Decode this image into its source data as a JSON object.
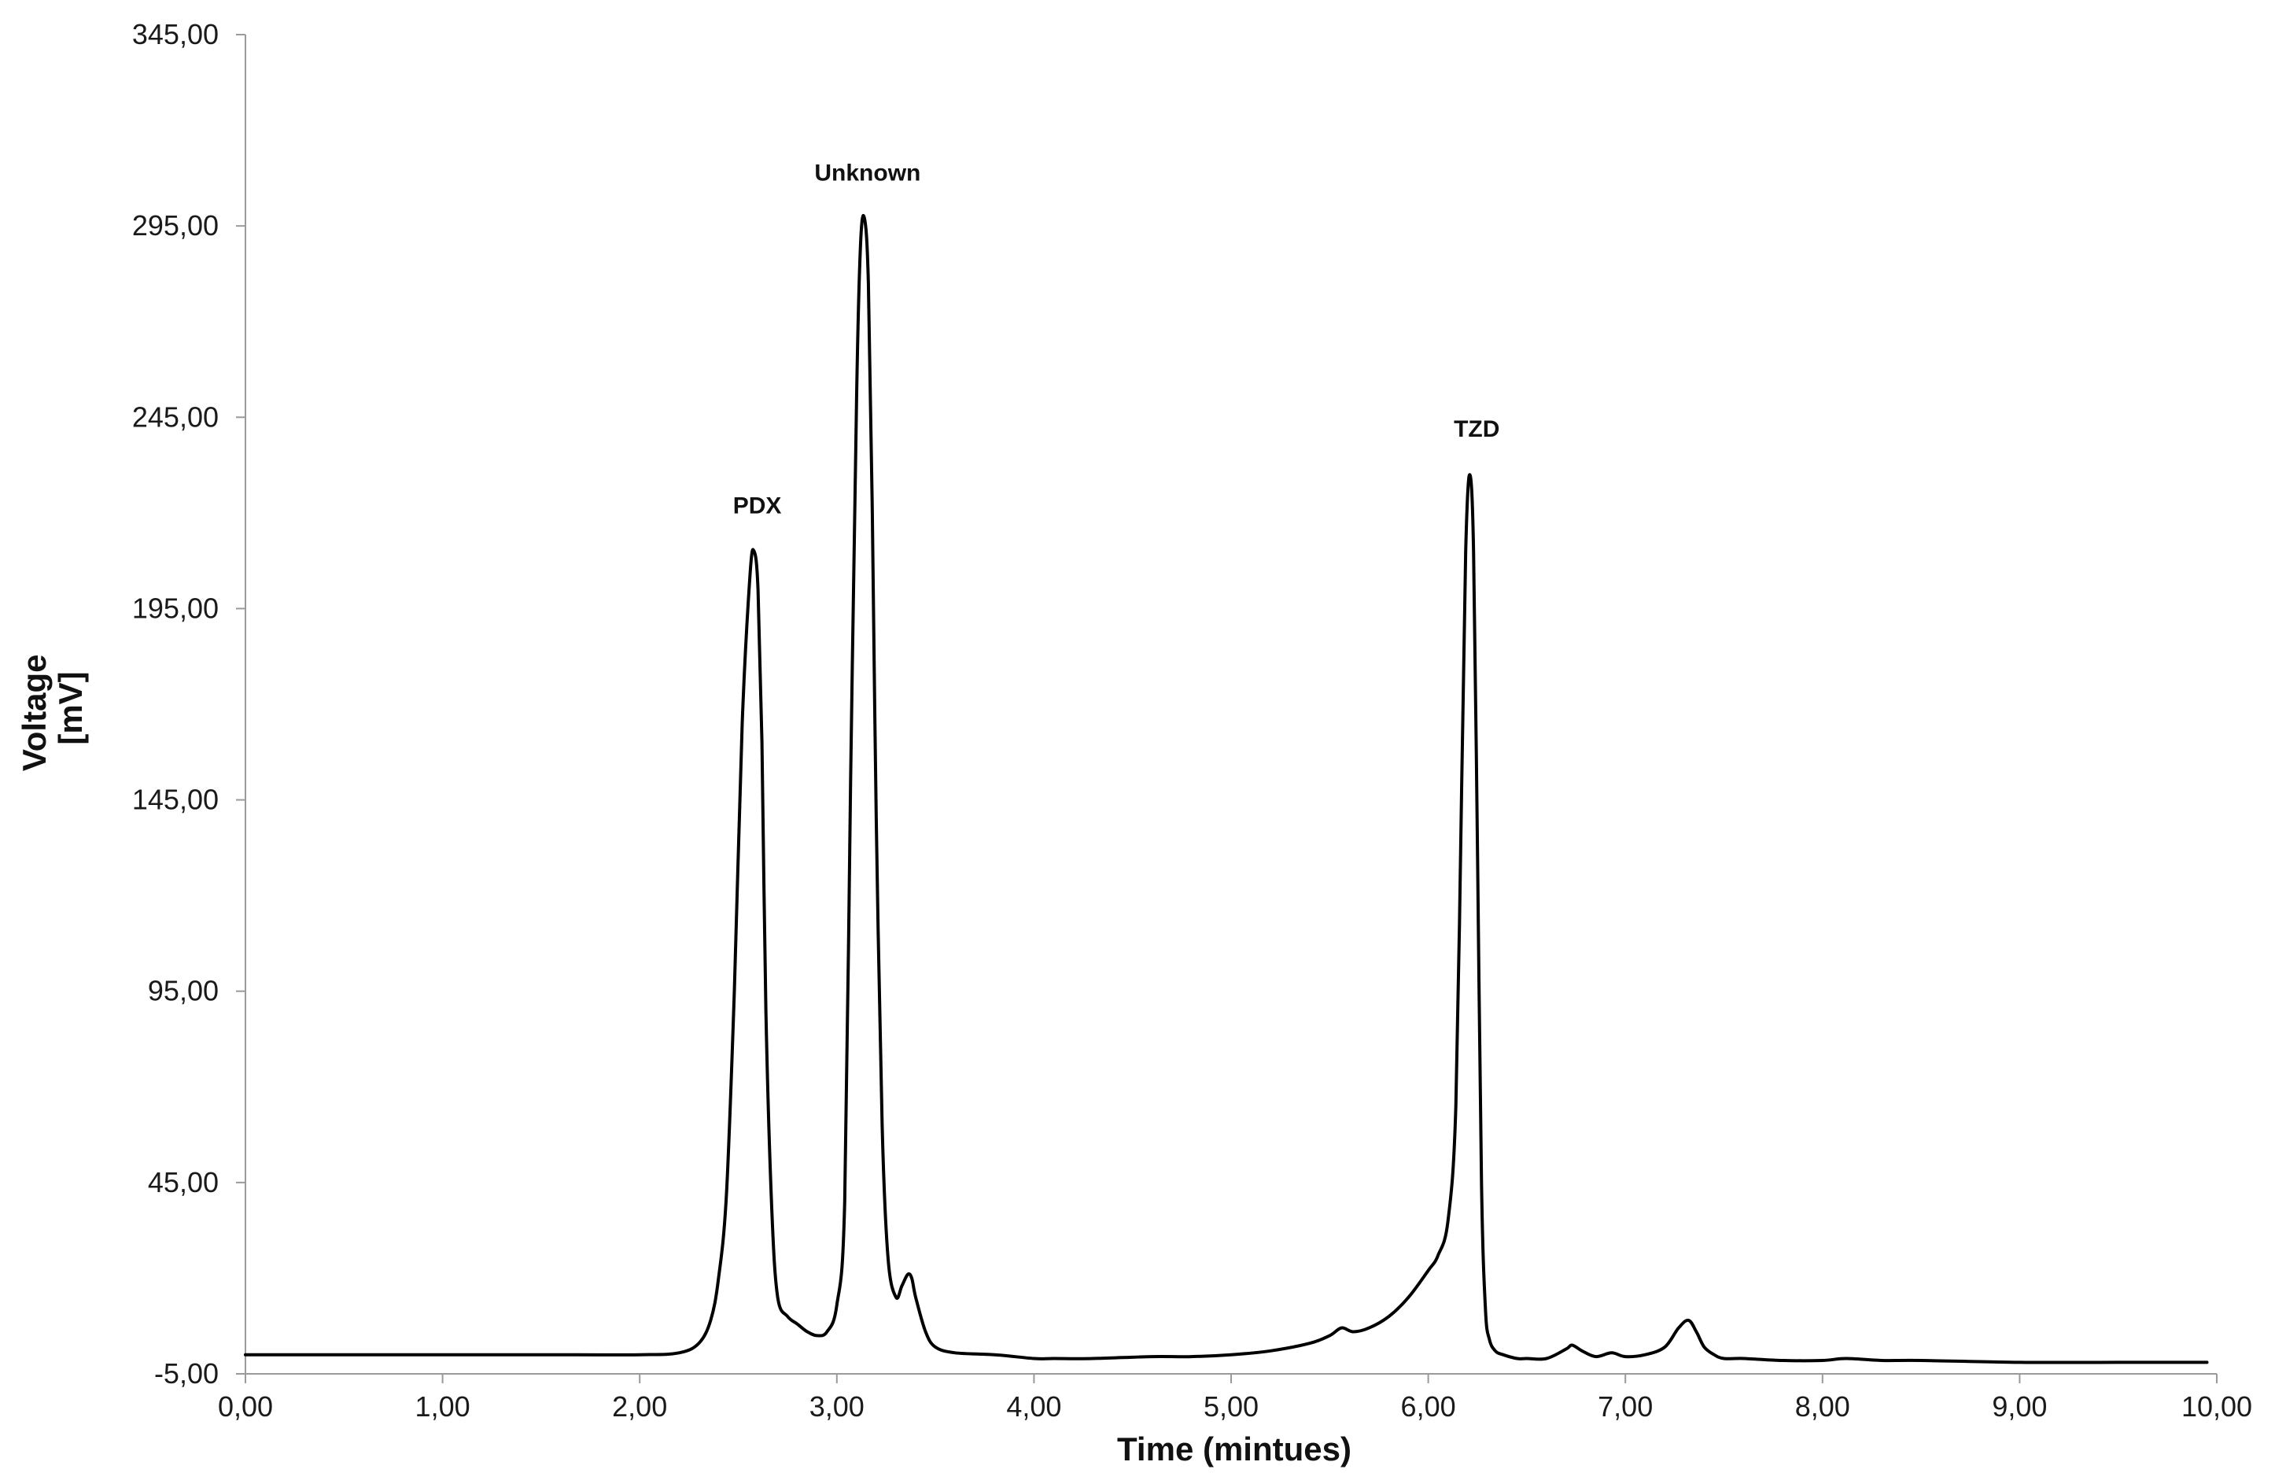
{
  "chart_data": {
    "type": "line",
    "title": "",
    "xlabel": "Time (mintues)",
    "ylabel_line1": "Voltage",
    "ylabel_line2": "[mV]",
    "xlim": [
      0,
      10
    ],
    "ylim": [
      -5,
      345
    ],
    "x_ticks": [
      0,
      1,
      2,
      3,
      4,
      5,
      6,
      7,
      8,
      9,
      10
    ],
    "x_tick_labels": [
      "0,00",
      "1,00",
      "2,00",
      "3,00",
      "4,00",
      "5,00",
      "6,00",
      "7,00",
      "8,00",
      "9,00",
      "10,00"
    ],
    "y_ticks": [
      -5,
      45,
      95,
      145,
      195,
      245,
      295,
      345
    ],
    "y_tick_labels": [
      "-5,00",
      "45,00",
      "95,00",
      "145,00",
      "195,00",
      "245,00",
      "295,00",
      "345,00"
    ],
    "grid": false,
    "series": [
      {
        "color": "#000000",
        "x": [
          0.0,
          0.5,
          1.0,
          1.5,
          2.0,
          2.2,
          2.3,
          2.36,
          2.4,
          2.44,
          2.48,
          2.52,
          2.56,
          2.58,
          2.6,
          2.62,
          2.64,
          2.67,
          2.7,
          2.75,
          2.8,
          2.85,
          2.9,
          2.95,
          3.0,
          3.04,
          3.07,
          3.1,
          3.12,
          3.14,
          3.16,
          3.18,
          3.2,
          3.23,
          3.26,
          3.3,
          3.33,
          3.36,
          3.38,
          3.4,
          3.45,
          3.5,
          3.6,
          3.8,
          4.0,
          4.1,
          4.3,
          4.6,
          4.8,
          5.0,
          5.2,
          5.4,
          5.5,
          5.56,
          5.62,
          5.7,
          5.8,
          5.9,
          6.0,
          6.05,
          6.1,
          6.14,
          6.17,
          6.19,
          6.21,
          6.23,
          6.25,
          6.27,
          6.29,
          6.31,
          6.34,
          6.38,
          6.45,
          6.5,
          6.6,
          6.7,
          6.73,
          6.78,
          6.85,
          6.93,
          7.0,
          7.1,
          7.2,
          7.27,
          7.32,
          7.36,
          7.4,
          7.45,
          7.5,
          7.6,
          7.8,
          8.0,
          8.12,
          8.3,
          8.5,
          9.0,
          9.5,
          9.95
        ],
        "y": [
          0,
          0,
          0,
          0,
          0,
          0.5,
          3,
          9,
          20,
          42,
          95,
          165,
          204,
          210,
          200,
          160,
          90,
          38,
          15,
          10,
          8,
          6,
          5,
          6,
          13,
          40,
          150,
          250,
          290,
          297,
          280,
          220,
          140,
          60,
          25,
          15,
          18,
          21,
          20,
          15,
          6,
          2,
          0.5,
          0,
          -1,
          -1,
          -1,
          -0.5,
          -0.5,
          0,
          1,
          3,
          5,
          7,
          6,
          7,
          10,
          15,
          22,
          26,
          35,
          65,
          150,
          210,
          230,
          210,
          130,
          45,
          12,
          4,
          1,
          0,
          -1,
          -1,
          -1,
          1.5,
          2.5,
          1,
          -0.5,
          0.5,
          -0.5,
          0,
          2,
          7,
          9,
          6,
          2,
          0,
          -1,
          -1,
          -1.5,
          -1.5,
          -1,
          -1.5,
          -1.5,
          -2,
          -2,
          -2
        ]
      }
    ],
    "annotations": [
      {
        "text": "PDX",
        "x": 2.58,
        "y": 210
      },
      {
        "text": "Unknown",
        "x": 3.14,
        "y": 297
      },
      {
        "text": "TZD",
        "x": 6.23,
        "y": 230
      }
    ]
  }
}
